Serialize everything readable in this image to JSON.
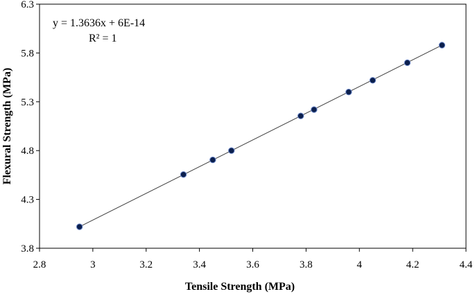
{
  "chart_data": {
    "type": "scatter",
    "title": "",
    "xlabel": "Tensile Strength (MPa)",
    "ylabel": "Flexural Strength (MPa)",
    "xlim": [
      2.8,
      4.4
    ],
    "ylim": [
      3.8,
      6.3
    ],
    "x_ticks": [
      "2.8",
      "3",
      "3.2",
      "3.4",
      "3.6",
      "3.8",
      "4",
      "4.2",
      "4.4"
    ],
    "y_ticks": [
      "3.8",
      "4.3",
      "4.8",
      "5.3",
      "5.8",
      "6.3"
    ],
    "grid": false,
    "legend": "none",
    "series": [
      {
        "x": [
          2.95,
          3.34,
          3.45,
          3.52,
          3.78,
          3.83,
          3.96,
          4.05,
          4.18,
          4.31
        ],
        "y": [
          4.02,
          4.555,
          4.705,
          4.8,
          5.155,
          5.22,
          5.4,
          5.52,
          5.7,
          5.88
        ],
        "marker_color": "#0b1f4d",
        "trendline_color": "#404040"
      }
    ],
    "trendline": {
      "equation": "y = 1.3636x + 6E-14",
      "r_squared": "R² = 1"
    }
  }
}
